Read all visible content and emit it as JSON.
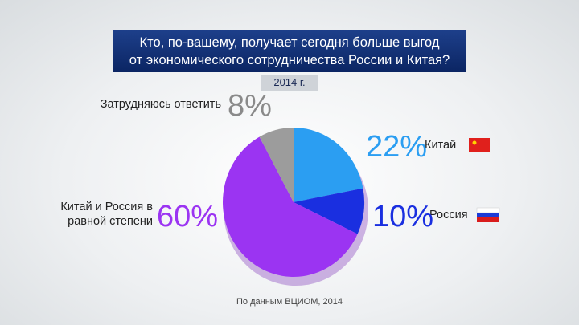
{
  "chart_data": {
    "type": "pie",
    "title": [
      "Кто, по-вашему, получает сегодня больше выгод",
      "от экономического сотрудничества России и Китая?"
    ],
    "subtitle": "2014 г.",
    "source": "По данным ВЦИОМ, 2014",
    "categories": [
      "Китай",
      "Россия",
      "Китай и Россия в равной степени",
      "Затрудняюсь ответить"
    ],
    "values": [
      22,
      10,
      60,
      8
    ],
    "value_labels": [
      "22%",
      "10%",
      "60%",
      "8%"
    ],
    "colors": [
      "#2b9ef2",
      "#1a2fe0",
      "#9b34f2",
      "#9c9c9c"
    ]
  }
}
